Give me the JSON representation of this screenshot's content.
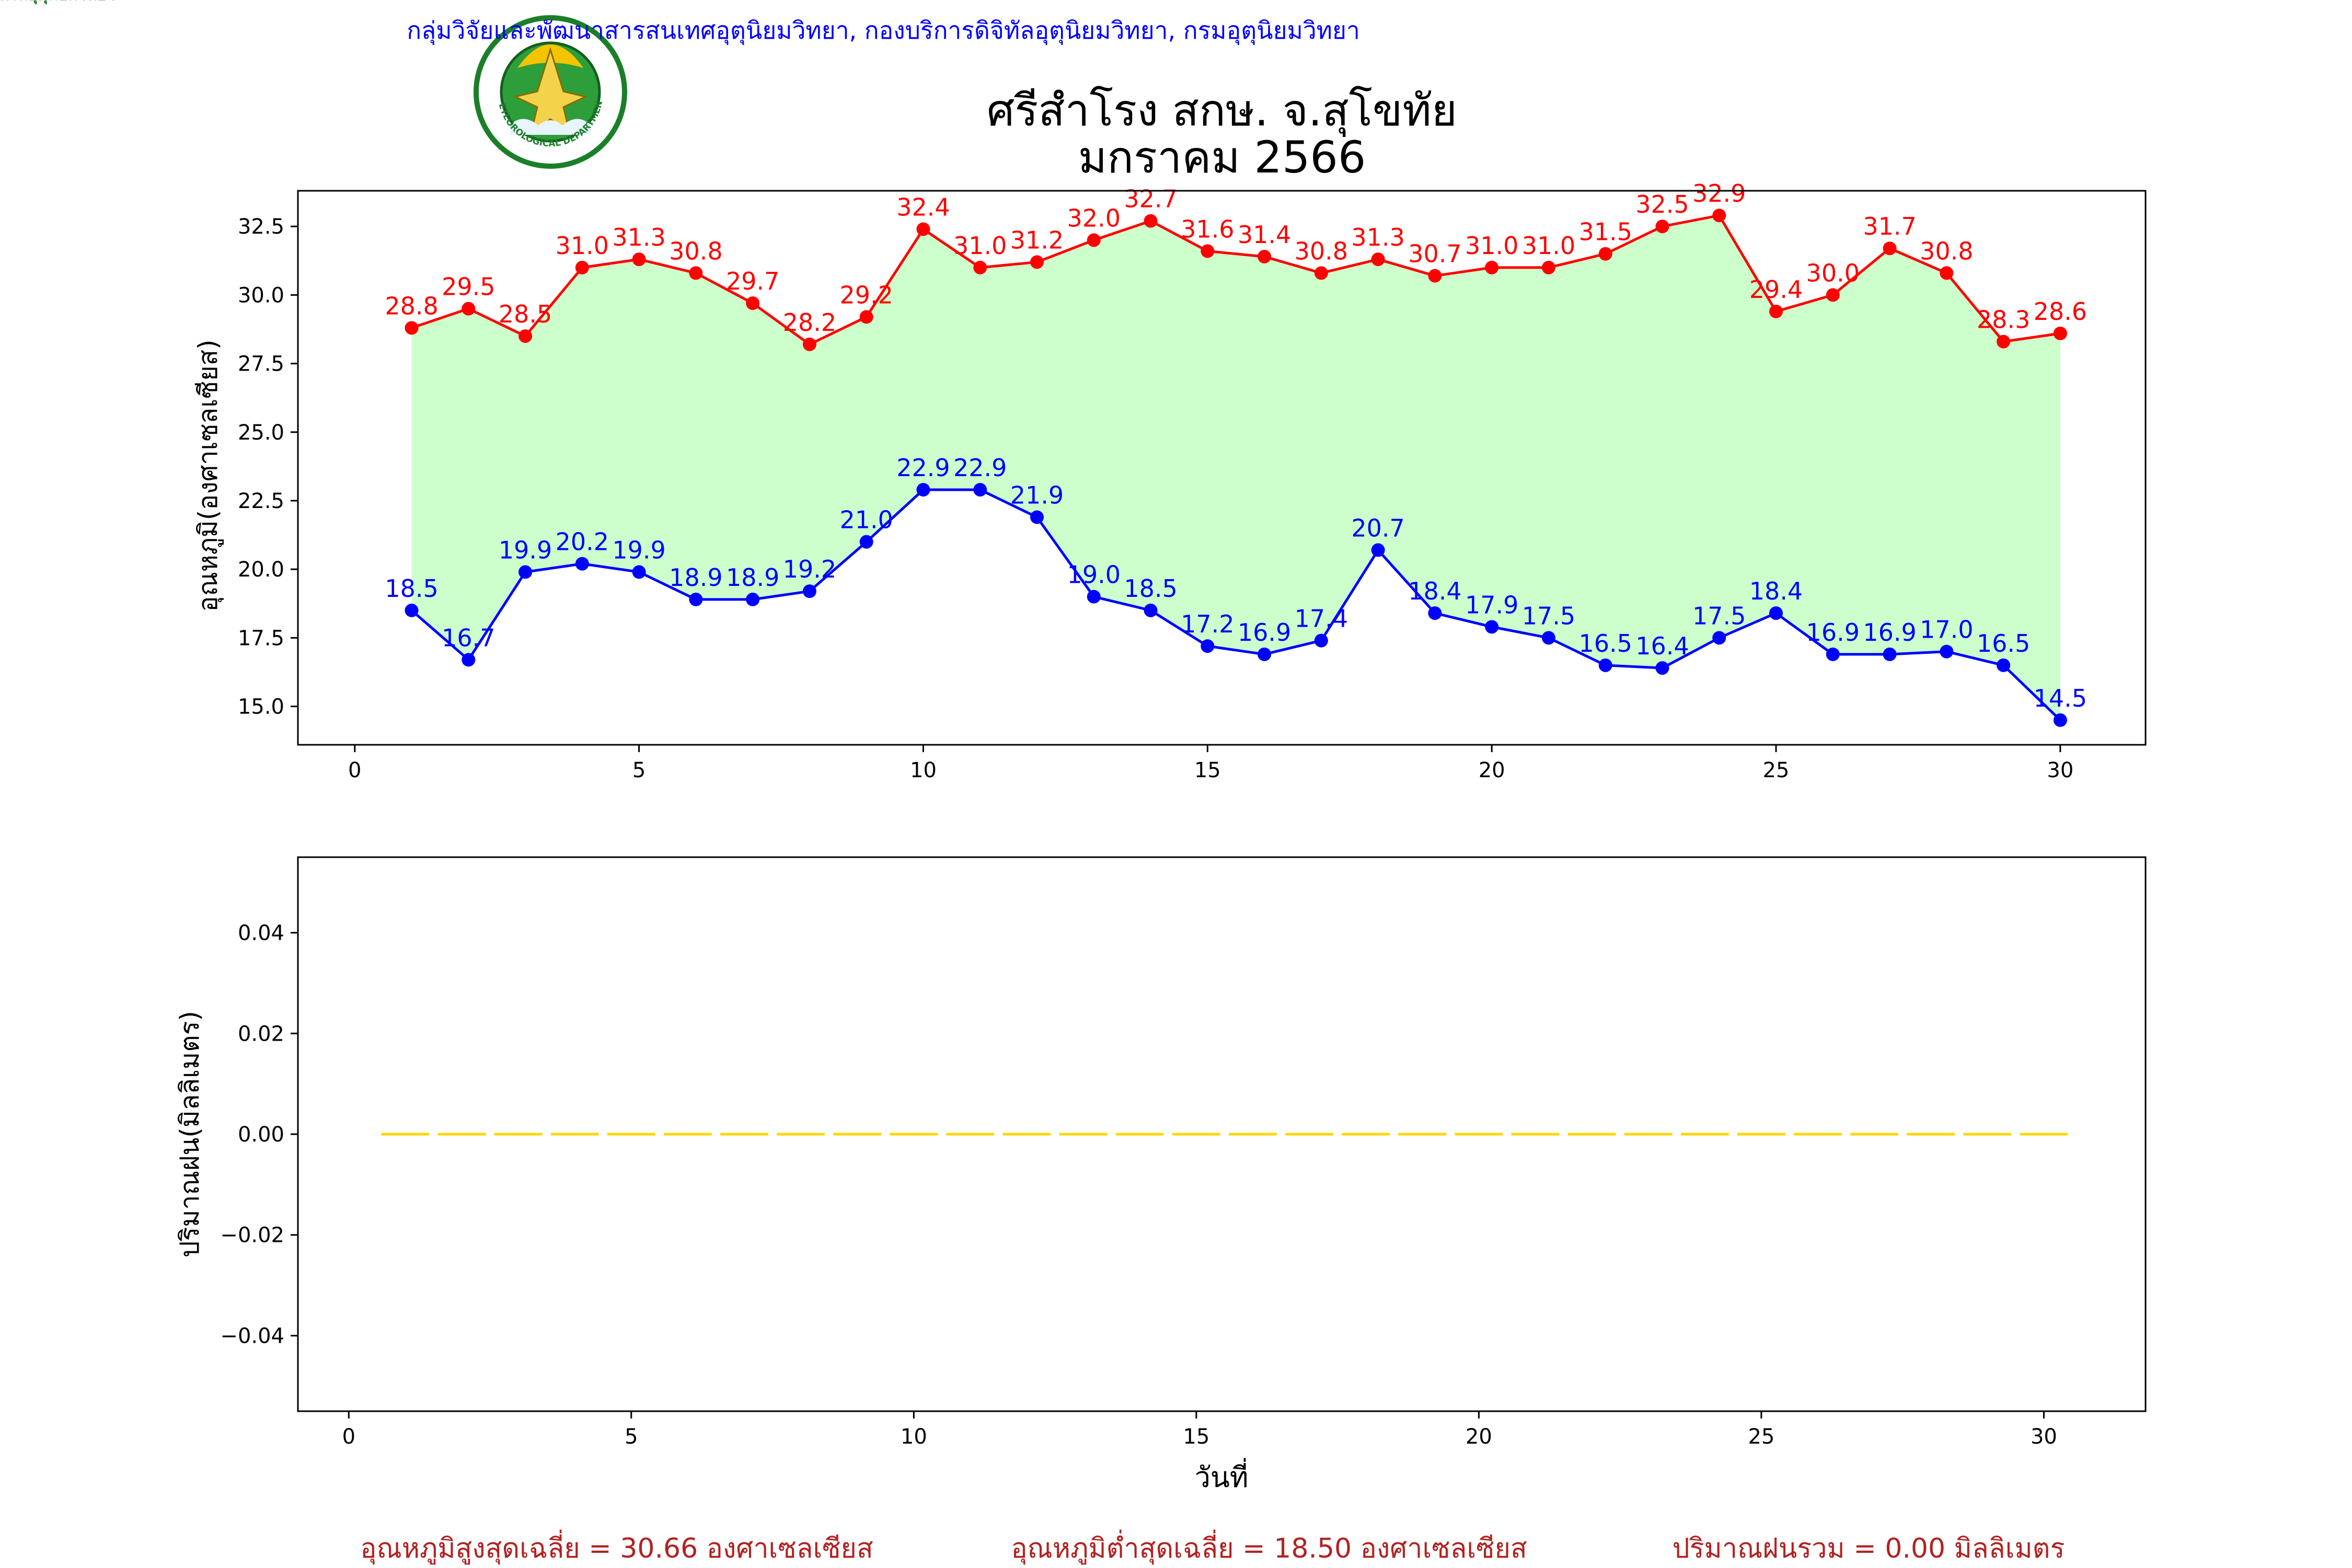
{
  "header": {
    "org_line": "กลุ่มวิจัยและพัฒนาสารสนเทศอุตุนิยมวิทยา, กองบริการดิจิทัลอุตุนิยมวิทยา, กรมอุตุนิยมวิทยา",
    "title": "ศรีสำโรง สกษ. จ.สุโขทัย",
    "subtitle": "มกราคม 2566",
    "logo_text_top": "กรมอุตุนิยมวิทยา",
    "logo_text_bottom": "METEOROLOGICAL DEPARTMENT"
  },
  "colors": {
    "max_series": "#ff0000",
    "min_series": "#0000ff",
    "fill_between": "#ccffcc",
    "rain_series": "#ffd700",
    "header_text": "#0000ff",
    "footer_text": "#b22222",
    "axis": "#000000"
  },
  "chart_data": [
    {
      "type": "line",
      "ylabel": "อุณหภูมิ(องศาเซลเซียส)",
      "xlabel": "",
      "xlim": [
        -1,
        31.5
      ],
      "ylim": [
        13.6,
        33.8
      ],
      "xticks": [
        0,
        5,
        10,
        15,
        20,
        25,
        30
      ],
      "yticks": [
        15.0,
        17.5,
        20.0,
        22.5,
        25.0,
        27.5,
        30.0,
        32.5
      ],
      "fill_between": true,
      "x": [
        1,
        2,
        3,
        4,
        5,
        6,
        7,
        8,
        9,
        10,
        11,
        12,
        13,
        14,
        15,
        16,
        17,
        18,
        19,
        20,
        21,
        22,
        23,
        24,
        25,
        26,
        27,
        28,
        29,
        30
      ],
      "series": [
        {
          "key": "max",
          "values": [
            28.8,
            29.5,
            28.5,
            31.0,
            31.3,
            30.8,
            29.7,
            28.2,
            29.2,
            32.4,
            31.0,
            31.2,
            32.0,
            32.7,
            31.6,
            31.4,
            30.8,
            31.3,
            30.7,
            31.0,
            31.0,
            31.5,
            32.5,
            32.9,
            29.4,
            30.0,
            31.7,
            30.8,
            28.3,
            28.6
          ]
        },
        {
          "key": "min",
          "values": [
            18.5,
            16.7,
            19.9,
            20.2,
            19.9,
            18.9,
            18.9,
            19.2,
            21.0,
            22.9,
            22.9,
            21.9,
            19.0,
            18.5,
            17.2,
            16.9,
            17.4,
            20.7,
            18.4,
            17.9,
            17.5,
            16.5,
            16.4,
            17.5,
            18.4,
            16.9,
            16.9,
            17.0,
            16.5,
            14.5
          ]
        }
      ]
    },
    {
      "type": "bar",
      "ylabel": "ปริมาณฝน(มิลลิเมตร)",
      "xlabel": "วันที่",
      "xlim": [
        -0.9,
        31.8
      ],
      "ylim": [
        -0.055,
        0.055
      ],
      "xticks": [
        0,
        5,
        10,
        15,
        20,
        25,
        30
      ],
      "yticks": [
        0.04,
        0.02,
        0.0,
        -0.02,
        -0.04
      ],
      "ytick_labels": [
        "0.04",
        "0.02",
        "0.00",
        "−0.02",
        "−0.04"
      ],
      "x": [
        1,
        2,
        3,
        4,
        5,
        6,
        7,
        8,
        9,
        10,
        11,
        12,
        13,
        14,
        15,
        16,
        17,
        18,
        19,
        20,
        21,
        22,
        23,
        24,
        25,
        26,
        27,
        28,
        29,
        30
      ],
      "values": [
        0,
        0,
        0,
        0,
        0,
        0,
        0,
        0,
        0,
        0,
        0,
        0,
        0,
        0,
        0,
        0,
        0,
        0,
        0,
        0,
        0,
        0,
        0,
        0,
        0,
        0,
        0,
        0,
        0,
        0
      ]
    }
  ],
  "footer": {
    "avg_max": "อุณหภูมิสูงสุดเฉลี่ย = 30.66 องศาเซลเซียส",
    "avg_min": "อุณหภูมิต่ำสุดเฉลี่ย = 18.50 องศาเซลเซียส",
    "total_rain": "ปริมาณฝนรวม = 0.00 มิลลิเมตร"
  }
}
